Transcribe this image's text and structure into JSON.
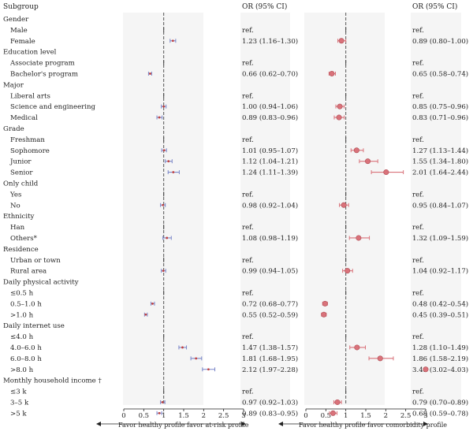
{
  "chart_data": {
    "type": "forest",
    "subgroup_header": "Subgroup",
    "or_header": "OR (95% CI)",
    "xlim": [
      0,
      3
    ],
    "xticks": [
      "0",
      "0.5",
      "1",
      "1.5",
      "2",
      "2.5",
      "3"
    ],
    "reference_line": 1,
    "rows": [
      {
        "label": "Gender",
        "type": "group"
      },
      {
        "label": "Male",
        "type": "ref"
      },
      {
        "label": "Female",
        "type": "item"
      },
      {
        "label": "Education level",
        "type": "group"
      },
      {
        "label": "Associate program",
        "type": "ref"
      },
      {
        "label": "Bachelor's program",
        "type": "item"
      },
      {
        "label": "Major",
        "type": "group"
      },
      {
        "label": "Liberal arts",
        "type": "ref"
      },
      {
        "label": "Science and engineering",
        "type": "item"
      },
      {
        "label": "Medical",
        "type": "item"
      },
      {
        "label": "Grade",
        "type": "group"
      },
      {
        "label": "Freshman",
        "type": "ref"
      },
      {
        "label": "Sophomore",
        "type": "item"
      },
      {
        "label": "Junior",
        "type": "item"
      },
      {
        "label": "Senior",
        "type": "item"
      },
      {
        "label": "Only child",
        "type": "group"
      },
      {
        "label": "Yes",
        "type": "ref"
      },
      {
        "label": "No",
        "type": "item"
      },
      {
        "label": "Ethnicity",
        "type": "group"
      },
      {
        "label": "Han",
        "type": "ref"
      },
      {
        "label": "Others*",
        "type": "item"
      },
      {
        "label": "Residence",
        "type": "group"
      },
      {
        "label": "Urban or town",
        "type": "ref"
      },
      {
        "label": "Rural area",
        "type": "item"
      },
      {
        "label": "Daily physical activity",
        "type": "group"
      },
      {
        "label": "≤0.5 h",
        "type": "ref"
      },
      {
        "label": "0.5–1.0 h",
        "type": "item"
      },
      {
        "label": ">1.0 h",
        "type": "item"
      },
      {
        "label": "Daily internet use",
        "type": "group"
      },
      {
        "label": "≤4.0 h",
        "type": "ref"
      },
      {
        "label": "4.0–6.0 h",
        "type": "item"
      },
      {
        "label": "6.0–8.0 h",
        "type": "item"
      },
      {
        "label": ">8.0 h",
        "type": "item"
      },
      {
        "label": "Monthly household income †",
        "type": "group"
      },
      {
        "label": "≤3 k",
        "type": "ref"
      },
      {
        "label": "3–5 k",
        "type": "item"
      },
      {
        "label": ">5 k",
        "type": "item"
      }
    ],
    "panels": [
      {
        "name": "at-risk",
        "xlabel": "Favor healthy profile favor at-risk profile",
        "marker_color": "#7a86c8",
        "values": [
          null,
          "ref",
          [
            1.23,
            1.16,
            1.3
          ],
          null,
          "ref",
          [
            0.66,
            0.62,
            0.7
          ],
          null,
          "ref",
          [
            1.0,
            0.94,
            1.06
          ],
          [
            0.89,
            0.83,
            0.96
          ],
          null,
          "ref",
          [
            1.01,
            0.95,
            1.07
          ],
          [
            1.12,
            1.04,
            1.21
          ],
          [
            1.24,
            1.11,
            1.39
          ],
          null,
          "ref",
          [
            0.98,
            0.92,
            1.04
          ],
          null,
          "ref",
          [
            1.08,
            0.98,
            1.19
          ],
          null,
          "ref",
          [
            0.99,
            0.94,
            1.05
          ],
          null,
          "ref",
          [
            0.72,
            0.68,
            0.77
          ],
          [
            0.55,
            0.52,
            0.59
          ],
          null,
          "ref",
          [
            1.47,
            1.38,
            1.57
          ],
          [
            1.81,
            1.68,
            1.95
          ],
          [
            2.12,
            1.97,
            2.28
          ],
          null,
          "ref",
          [
            0.97,
            0.92,
            1.03
          ],
          [
            0.89,
            0.83,
            0.95
          ]
        ],
        "texts": [
          "",
          "ref.",
          "1.23 (1.16–1.30)",
          "",
          "ref.",
          "0.66 (0.62–0.70)",
          "",
          "ref.",
          "1.00 (0.94–1.06)",
          "0.89 (0.83–0.96)",
          "",
          "ref.",
          "1.01 (0.95–1.07)",
          "1.12 (1.04–1.21)",
          "1.24 (1.11–1.39)",
          "",
          "ref.",
          "0.98 (0.92–1.04)",
          "",
          "ref.",
          "1.08 (0.98–1.19)",
          "",
          "ref.",
          "0.99 (0.94–1.05)",
          "",
          "ref.",
          "0.72 (0.68–0.77)",
          "0.55 (0.52–0.59)",
          "",
          "ref.",
          "1.47 (1.38–1.57)",
          "1.81 (1.68–1.95)",
          "2.12 (1.97–2.28)",
          "",
          "ref.",
          "0.97 (0.92–1.03)",
          "0.89 (0.83–0.95)"
        ]
      },
      {
        "name": "comorbidity",
        "xlabel": "Favor healthy profile favor comorbidity profile",
        "marker_color": "#d9727a",
        "values": [
          null,
          "ref",
          [
            0.89,
            0.8,
            1.0
          ],
          null,
          "ref",
          [
            0.65,
            0.58,
            0.74
          ],
          null,
          "ref",
          [
            0.85,
            0.75,
            0.96
          ],
          [
            0.83,
            0.71,
            0.96
          ],
          null,
          "ref",
          [
            1.27,
            1.13,
            1.44
          ],
          [
            1.55,
            1.34,
            1.8
          ],
          [
            2.01,
            1.64,
            2.44
          ],
          null,
          "ref",
          [
            0.95,
            0.84,
            1.07
          ],
          null,
          "ref",
          [
            1.32,
            1.09,
            1.59
          ],
          null,
          "ref",
          [
            1.04,
            0.92,
            1.17
          ],
          null,
          "ref",
          [
            0.48,
            0.42,
            0.54
          ],
          [
            0.45,
            0.39,
            0.51
          ],
          null,
          "ref",
          [
            1.28,
            1.1,
            1.49
          ],
          [
            1.86,
            1.58,
            2.19
          ],
          [
            3.49,
            3.02,
            4.03
          ],
          null,
          "ref",
          [
            0.79,
            0.7,
            0.89
          ],
          [
            0.68,
            0.59,
            0.78
          ]
        ],
        "texts": [
          "",
          "ref.",
          "0.89 (0.80–1.00)",
          "",
          "ref.",
          "0.65 (0.58–0.74)",
          "",
          "ref.",
          "0.85 (0.75–0.96)",
          "0.83 (0.71–0.96)",
          "",
          "ref.",
          "1.27 (1.13–1.44)",
          "1.55 (1.34–1.80)",
          "2.01 (1.64–2.44)",
          "",
          "ref.",
          "0.95 (0.84–1.07)",
          "",
          "ref.",
          "1.32 (1.09–1.59)",
          "",
          "ref.",
          "1.04 (0.92–1.17)",
          "",
          "ref.",
          "0.48 (0.42–0.54)",
          "0.45 (0.39–0.51)",
          "",
          "ref.",
          "1.28 (1.10–1.49)",
          "1.86 (1.58–2.19)",
          "3.49 (3.02–4.03)",
          "",
          "ref.",
          "0.79 (0.70–0.89)",
          "0.68 (0.59–0.78)"
        ]
      }
    ]
  }
}
